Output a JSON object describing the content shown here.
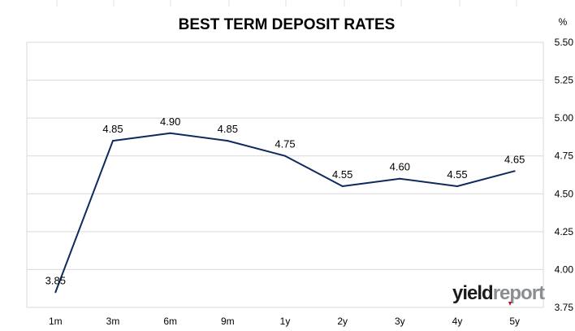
{
  "chart_data": {
    "type": "line",
    "title": "BEST TERM DEPOSIT RATES",
    "unit_label": "%",
    "categories": [
      "1m",
      "3m",
      "6m",
      "9m",
      "1y",
      "2y",
      "3y",
      "4y",
      "5y"
    ],
    "series": [
      {
        "values": [
          3.85,
          4.85,
          4.9,
          4.85,
          4.75,
          4.55,
          4.6,
          4.55,
          4.65
        ],
        "color": "#0f2a5e"
      }
    ],
    "data_labels": [
      "3.85",
      "4.85",
      "4.90",
      "4.85",
      "4.75",
      "4.55",
      "4.60",
      "4.55",
      "4.65"
    ],
    "y_ticks": [
      "3.75",
      "4.00",
      "4.25",
      "4.50",
      "4.75",
      "5.00",
      "5.25",
      "5.50"
    ],
    "ylim": [
      3.75,
      5.5
    ],
    "y_axis_side": "right",
    "grid": "horizontal",
    "legend": "none"
  },
  "logo": {
    "part1": "yield",
    "part2": "report",
    "accent_color": "#d0021b"
  },
  "colors": {
    "grid": "#d9d9d9",
    "line": "#0f2a5e"
  }
}
